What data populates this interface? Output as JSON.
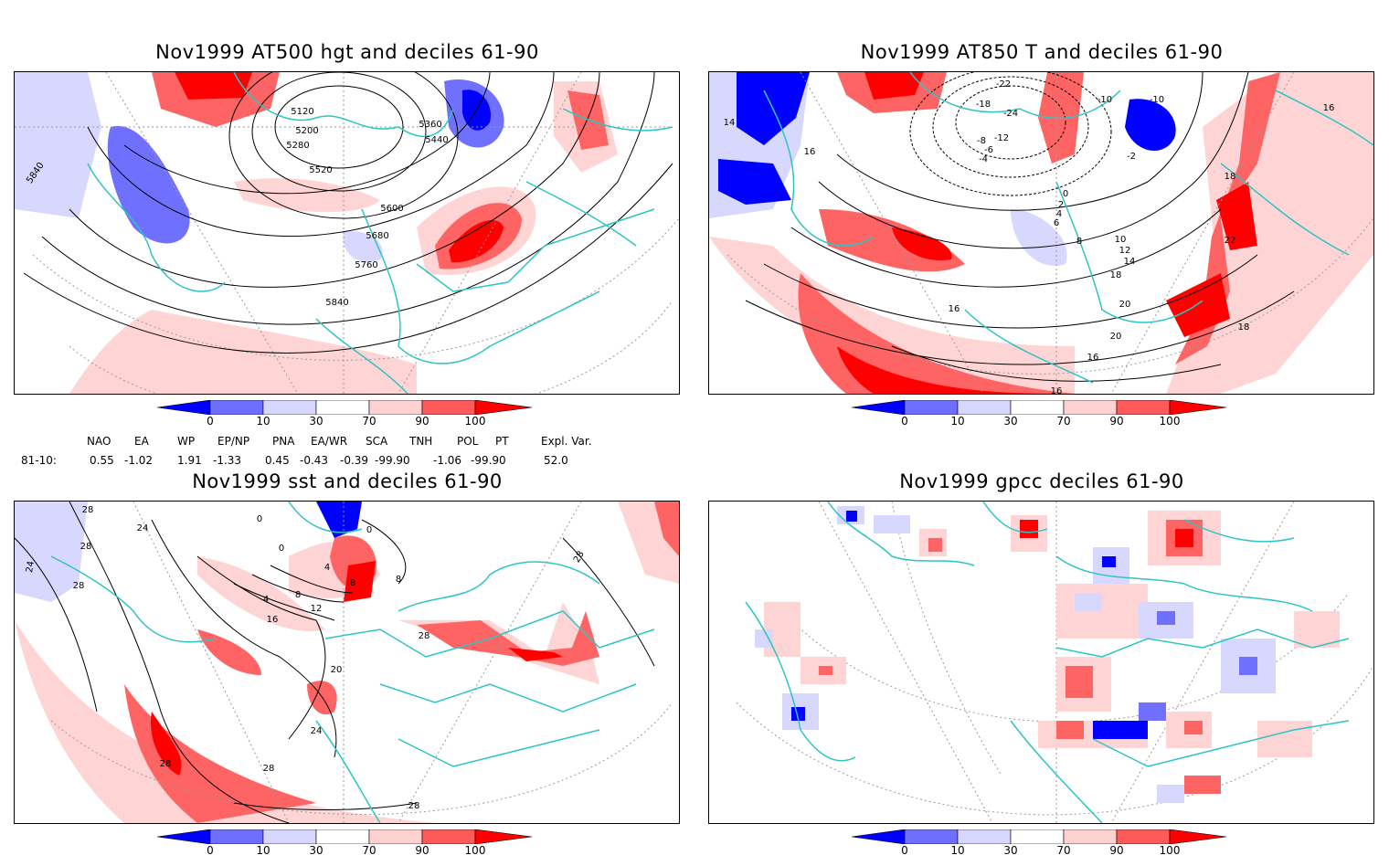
{
  "panels": [
    {
      "title": "Nov1999 AT500 hgt and deciles 61-90",
      "contour_labels": [
        "5120",
        "5200",
        "5280",
        "5360",
        "5440",
        "5520",
        "5600",
        "5680",
        "5760",
        "5840",
        "5840"
      ]
    },
    {
      "title": "Nov1999 AT850 T and deciles 61-90",
      "contour_labels": [
        "-22",
        "-18",
        "-24",
        "-12",
        "-10",
        "-10",
        "-8",
        "-6",
        "-4",
        "-2",
        "0",
        "2",
        "4",
        "6",
        "8",
        "10",
        "12",
        "14",
        "16",
        "16",
        "16",
        "16",
        "18",
        "18",
        "18",
        "20",
        "20",
        "22",
        "14",
        "16"
      ]
    },
    {
      "title": "Nov1999 sst and deciles 61-90",
      "contour_labels": [
        "28",
        "24",
        "28",
        "24",
        "0",
        "0",
        "0",
        "4",
        "8",
        "8",
        "4",
        "8",
        "12",
        "16",
        "20",
        "24",
        "28",
        "28",
        "28",
        "28",
        "28",
        "28"
      ]
    },
    {
      "title": "Nov1999 gpcc deciles 61-90",
      "contour_labels": []
    }
  ],
  "colorbar": {
    "ticks": [
      "0",
      "10",
      "30",
      "70",
      "90",
      "100"
    ],
    "colors": [
      "#0000ff",
      "#6e6eff",
      "#d6d6ff",
      "#ffffff",
      "#ffd2d2",
      "#ff5a5a",
      "#ff0000"
    ]
  },
  "indices": {
    "headers": [
      "NAO",
      "EA",
      "WP",
      "EP/NP",
      "PNA",
      "EA/WR",
      "SCA",
      "TNH",
      "POL",
      "PT",
      "Expl. Var."
    ],
    "row_label": "81-10:",
    "values": [
      "0.55",
      "-1.02",
      "1.91",
      "-1.33",
      "0.45",
      "-0.43",
      "-0.39",
      "-99.90",
      "-1.06",
      "-99.90",
      "52.0"
    ]
  },
  "colors": {
    "coast": "#2ec4c4",
    "grid": "#9a9a9a",
    "strong_red": "#ff0000",
    "red": "#ff6464",
    "light_red": "#ffd4d4",
    "strong_blue": "#0000ff",
    "blue": "#7070ff",
    "light_blue": "#d8d8ff"
  }
}
